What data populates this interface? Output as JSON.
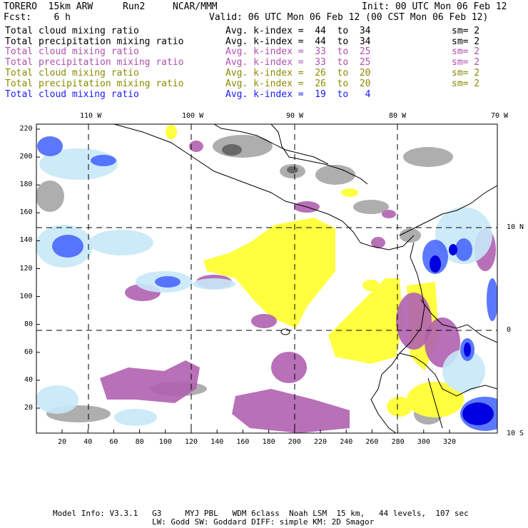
{
  "header": {
    "model": "TORERO  15km ARW",
    "run": "Run2",
    "org": "NCAR/MMM",
    "init": "Init: 00 UTC Mon 06 Feb 12",
    "fcst": "Fcst:    6 h",
    "valid": "Valid: 06 UTC Mon 06 Feb 12 (00 CST Mon 06 Feb 12)"
  },
  "legend": [
    {
      "field": "Total cloud mixing ratio",
      "kindex": "Avg. k-index =  44  to  34",
      "sm": "sm= 2",
      "color": "#000000"
    },
    {
      "field": "Total precipitation mixing ratio",
      "kindex": "Avg. k-index =  44  to  34",
      "sm": "sm= 2",
      "color": "#000000"
    },
    {
      "field": "Total cloud mixing ratio",
      "kindex": "Avg. k-index =  33  to  25",
      "sm": "sm= 2",
      "color": "#b04fb0"
    },
    {
      "field": "Total precipitation mixing ratio",
      "kindex": "Avg. k-index =  33  to  25",
      "sm": "sm= 2",
      "color": "#b04fb0"
    },
    {
      "field": "Total cloud mixing ratio",
      "kindex": "Avg. k-index =  26  to  20",
      "sm": "sm= 2",
      "color": "#8a8a00"
    },
    {
      "field": "Total precipitation mixing ratio",
      "kindex": "Avg. k-index =  26  to  20",
      "sm": "sm= 2",
      "color": "#8a8a00"
    },
    {
      "field": "Total cloud mixing ratio",
      "kindex": "Avg. k-index =  19  to   4",
      "sm": "",
      "color": "#1a1aff"
    }
  ],
  "map": {
    "lon_labels": [
      "110 W",
      "100 W",
      "90 W",
      "80 W",
      "70 W"
    ],
    "lat_labels": [
      "10 N",
      "0",
      "10 S"
    ],
    "x_ticks": [
      "20",
      "40",
      "60",
      "80",
      "100",
      "120",
      "140",
      "160",
      "180",
      "200",
      "220",
      "240",
      "260",
      "280",
      "300",
      "320"
    ],
    "y_ticks": [
      "220",
      "200",
      "180",
      "160",
      "140",
      "120",
      "100",
      "80",
      "60",
      "40",
      "20"
    ],
    "colors": {
      "gray": "#a0a0a0",
      "dark_gray": "#606060",
      "purple": "#b060b0",
      "yellow": "#ffff40",
      "light_blue": "#c8e8f8",
      "blue": "#4060ff",
      "dark_blue": "#0000e0"
    }
  },
  "footer": {
    "line1": "Model Info: V3.3.1   G3     MYJ PBL   WDM 6class  Noah LSM  15 km,   44 levels,  107 sec",
    "line2": "LW: Godd SW: Goddard DIFF: simple KM: 2D Smagor"
  }
}
